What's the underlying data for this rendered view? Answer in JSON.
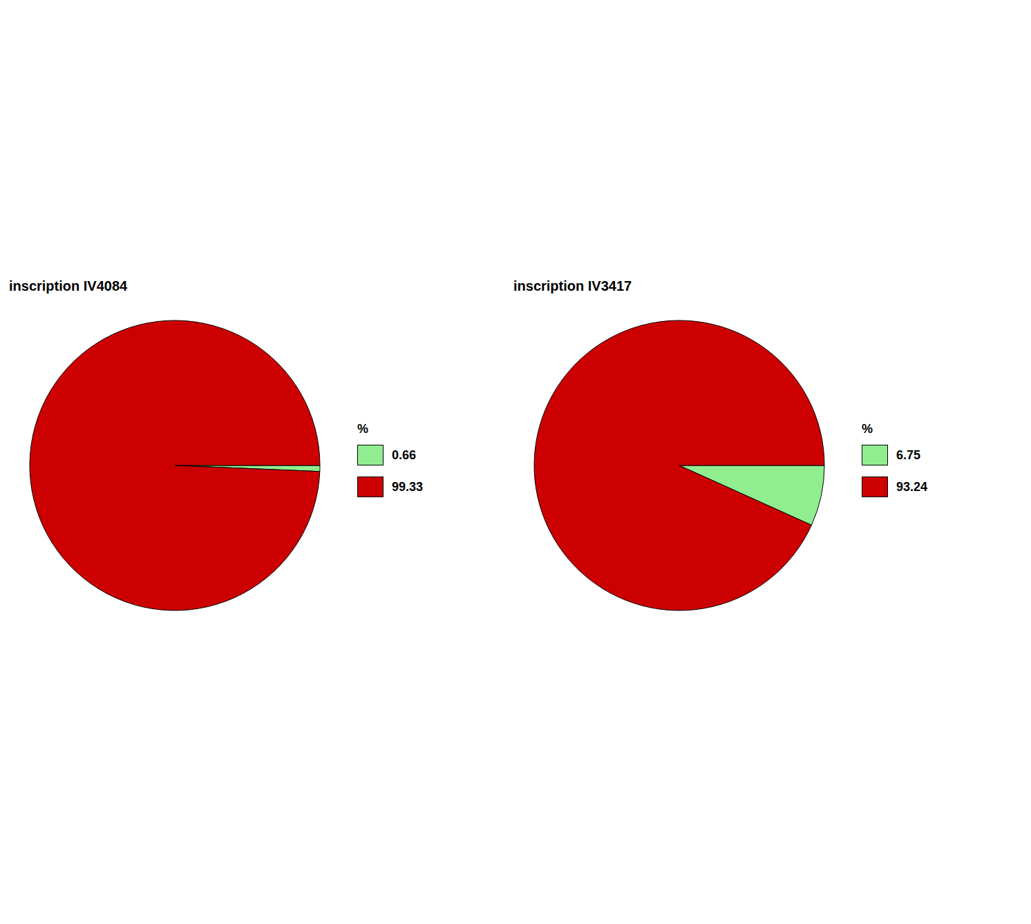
{
  "chart_data": [
    {
      "type": "pie",
      "title": "inscription IV4084",
      "categories": [
        "0.66",
        "99.33"
      ],
      "values": [
        0.66,
        99.33
      ],
      "colors": [
        "#90EE90",
        "#CC0000"
      ],
      "legend_title": "%"
    },
    {
      "type": "pie",
      "title": "inscription IV3417",
      "categories": [
        "6.75",
        "93.24"
      ],
      "values": [
        6.75,
        93.24
      ],
      "colors": [
        "#90EE90",
        "#CC0000"
      ],
      "legend_title": "%"
    }
  ]
}
